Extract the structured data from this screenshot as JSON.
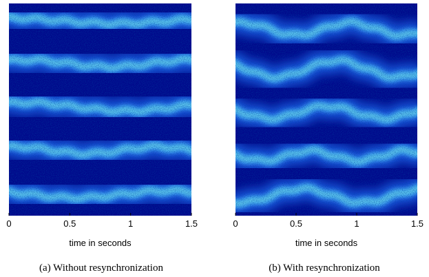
{
  "chart_data": [
    {
      "type": "image",
      "xlabel": "time in seconds",
      "xlim": [
        0,
        1.5
      ],
      "xticks": [
        0,
        0.5,
        1,
        1.5
      ],
      "caption": "(a)  Without resynchronization"
    },
    {
      "type": "image",
      "xlabel": "time in seconds",
      "xlim": [
        0,
        1.5
      ],
      "xticks": [
        0,
        0.5,
        1,
        1.5
      ],
      "caption": "(b)  With resynchronization"
    }
  ]
}
